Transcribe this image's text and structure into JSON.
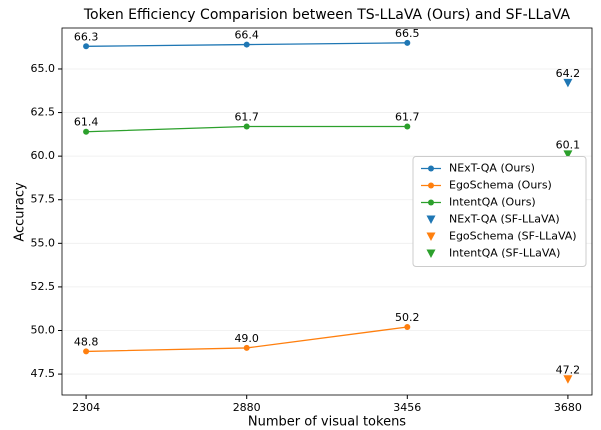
{
  "chart_data": {
    "type": "line",
    "title": "Token Efficiency Comparision between TS-LLaVA (Ours) and SF-LLaVA",
    "xlabel": "Number of visual tokens",
    "ylabel": "Accuracy",
    "categories": [
      "2304",
      "2880",
      "3456",
      "3680"
    ],
    "ylim": [
      46.3,
      67.35
    ],
    "yticks": [
      47.5,
      {
        "value": 50,
        "label": "50.0"
      },
      52.5,
      {
        "value": 55,
        "label": "55.0"
      },
      57.5,
      {
        "value": 60,
        "label": "60.0"
      },
      62.5,
      {
        "value": 65,
        "label": "65.0"
      }
    ],
    "grid": true,
    "legend": "center right",
    "series": [
      {
        "name": "NExT-QA (Ours)",
        "color": "#1f77b4",
        "marker": "circle",
        "line": true,
        "values": [
          66.3,
          66.4,
          66.5,
          null
        ],
        "value_labels": [
          "66.3",
          "66.4",
          "66.5",
          null
        ]
      },
      {
        "name": "EgoSchema (Ours)",
        "color": "#ff7f0e",
        "marker": "circle",
        "line": true,
        "values": [
          48.8,
          49,
          50.2,
          null
        ],
        "value_labels": [
          "48.8",
          "49.0",
          "50.2",
          null
        ]
      },
      {
        "name": "IntentQA (Ours)",
        "color": "#2ca02c",
        "marker": "circle",
        "line": true,
        "values": [
          61.4,
          61.7,
          61.7,
          null
        ],
        "value_labels": [
          "61.4",
          "61.7",
          "61.7",
          null
        ]
      },
      {
        "name": "NExT-QA (SF-LLaVA)",
        "color": "#1f77b4",
        "marker": "triangle-down",
        "line": false,
        "values": [
          null,
          null,
          null,
          64.2
        ],
        "value_labels": [
          null,
          null,
          null,
          "64.2"
        ]
      },
      {
        "name": "EgoSchema (SF-LLaVA)",
        "color": "#ff7f0e",
        "marker": "triangle-down",
        "line": false,
        "values": [
          null,
          null,
          null,
          47.2
        ],
        "value_labels": [
          null,
          null,
          null,
          "47.2"
        ]
      },
      {
        "name": "IntentQA (SF-LLaVA)",
        "color": "#2ca02c",
        "marker": "triangle-down",
        "line": false,
        "values": [
          null,
          null,
          null,
          60.1
        ],
        "value_labels": [
          null,
          null,
          null,
          "60.1"
        ]
      }
    ]
  }
}
